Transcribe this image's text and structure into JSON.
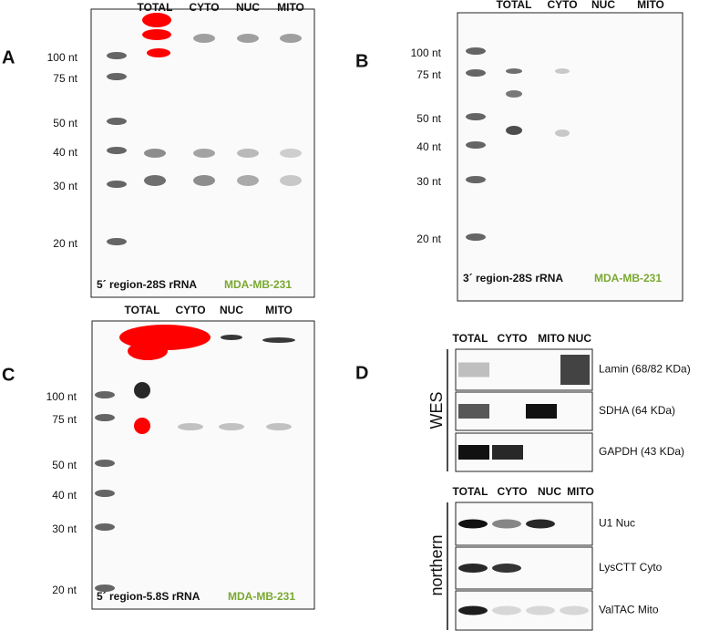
{
  "panels": [
    {
      "label": "A",
      "lanes": [
        "TOTAL",
        "CYTO",
        "NUC",
        "MITO"
      ],
      "markers": [
        "100 nt",
        "75 nt",
        "50 nt",
        "40 nt",
        "30 nt",
        "20 nt"
      ],
      "caption": "5´ region-28S rRNA",
      "cell_line": "MDA-MB-231"
    },
    {
      "label": "B",
      "lanes": [
        "TOTAL",
        "CYTO",
        "NUC",
        "MITO"
      ],
      "markers": [
        "100 nt",
        "75 nt",
        "50 nt",
        "40 nt",
        "30 nt",
        "20 nt"
      ],
      "caption": "3´ region-28S rRNA",
      "cell_line": "MDA-MB-231"
    },
    {
      "label": "C",
      "lanes": [
        "TOTAL",
        "CYTO",
        "NUC",
        "MITO"
      ],
      "markers": [
        "100 nt",
        "75 nt",
        "50 nt",
        "40 nt",
        "30 nt",
        "20 nt"
      ],
      "caption": "5´ region-5.8S rRNA",
      "cell_line": "MDA-MB-231"
    },
    {
      "label": "D",
      "wes": {
        "label": "WES",
        "lanes": [
          "TOTAL",
          "CYTO",
          "MITO",
          "NUC"
        ],
        "rows": [
          "Lamin (68/82 KDa)",
          "SDHA (64 KDa)",
          "GAPDH (43 KDa)"
        ]
      },
      "northern": {
        "label": "northern",
        "lanes": [
          "TOTAL",
          "CYTO",
          "NUC",
          "MITO"
        ],
        "rows": [
          "U1 Nuc",
          "LysCTT Cyto",
          "ValTAC Mito"
        ]
      }
    }
  ]
}
